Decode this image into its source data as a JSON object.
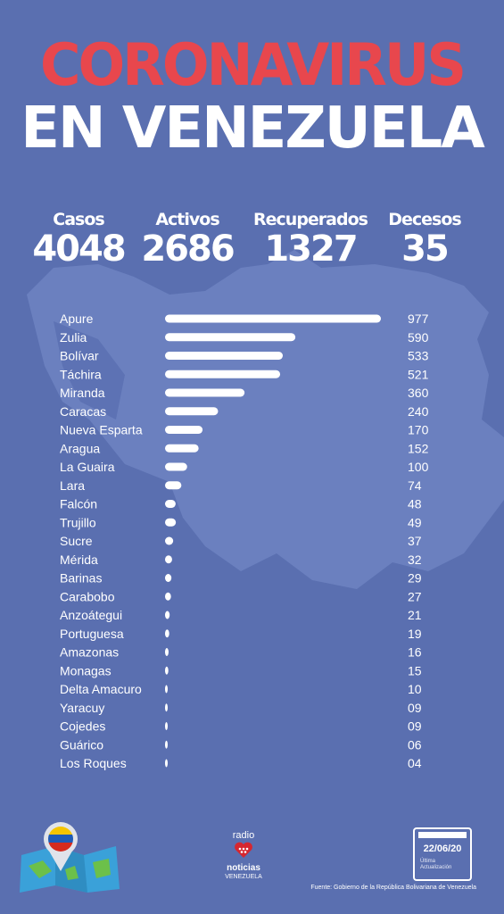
{
  "header": {
    "title_line1": "CORONAVIRUS",
    "title_line2": "EN VENEZUELA"
  },
  "stats": [
    {
      "label": "Casos",
      "value": "4048"
    },
    {
      "label": "Activos",
      "value": "2686"
    },
    {
      "label": "Recuperados",
      "value": "1327"
    },
    {
      "label": "Decesos",
      "value": "35"
    }
  ],
  "chart_data": {
    "type": "bar",
    "orientation": "horizontal",
    "categories": [
      "Apure",
      "Zulia",
      "Bolívar",
      "Táchira",
      "Miranda",
      "Caracas",
      "Nueva Esparta",
      "Aragua",
      "La Guaira",
      "Lara",
      "Falcón",
      "Trujillo",
      "Sucre",
      "Mérida",
      "Barinas",
      "Carabobo",
      "Anzoátegui",
      "Portuguesa",
      "Amazonas",
      "Monagas",
      "Delta Amacuro",
      "Yaracuy",
      "Cojedes",
      "Guárico",
      "Los Roques"
    ],
    "values": [
      977,
      590,
      533,
      521,
      360,
      240,
      170,
      152,
      100,
      74,
      48,
      49,
      37,
      32,
      29,
      27,
      21,
      19,
      16,
      15,
      10,
      9,
      9,
      6,
      4
    ],
    "value_labels": [
      "977",
      "590",
      "533",
      "521",
      "360",
      "240",
      "170",
      "152",
      "100",
      "74",
      "48",
      "49",
      "37",
      "32",
      "29",
      "27",
      "21",
      "19",
      "16",
      "15",
      "10",
      "09",
      "09",
      "06",
      "04"
    ],
    "bar_color": "#ffffff"
  },
  "footer": {
    "logo_top": "radio",
    "logo_name": "noticias",
    "logo_sub": "VENEZUELA",
    "update_date": "22/06/20",
    "update_label_1": "Última",
    "update_label_2": "Actualización",
    "source": "Fuente: Gobierno de la República Bolivariana de Venezuela"
  },
  "colors": {
    "background": "#5a6fb0",
    "map": "#6a80bf",
    "title_red": "#e8474d"
  }
}
